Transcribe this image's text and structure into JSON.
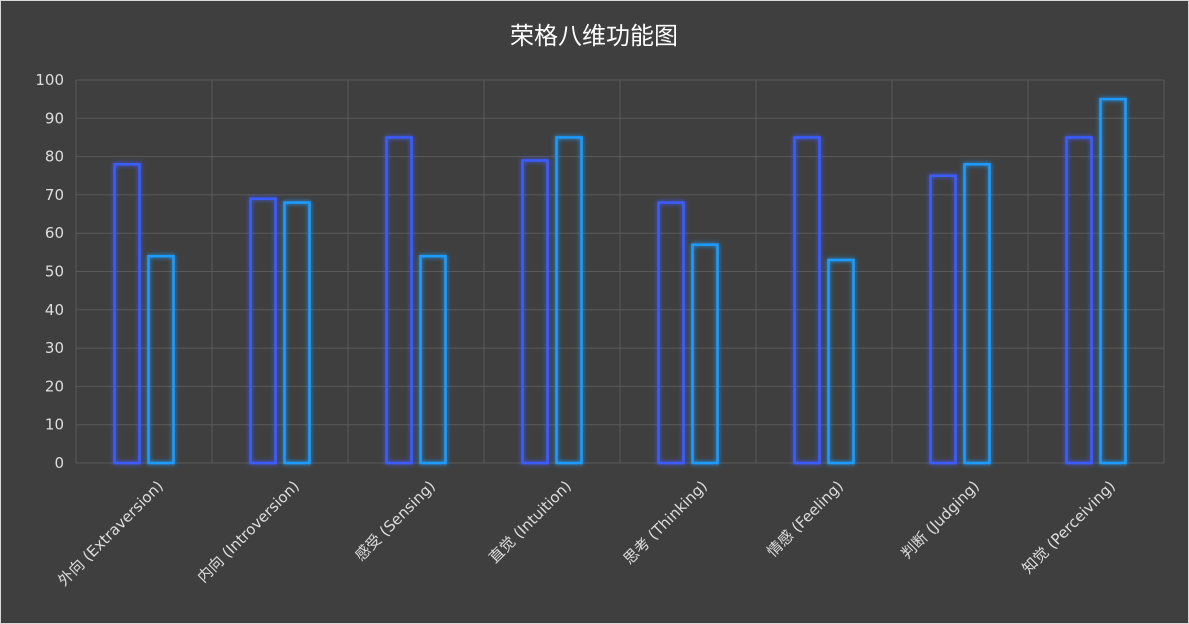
{
  "chart_data": {
    "type": "bar",
    "title": "荣格八维功能图",
    "categories": [
      "外向 (Extraversion)",
      "内向 (Introversion)",
      "感受 (Sensing)",
      "直觉 (Intuition)",
      "思考 (Thinking)",
      "情感 (Feeling)",
      "判断 (Judging)",
      "知觉 (Perceiving)"
    ],
    "series": [
      {
        "values": [
          78,
          69,
          85,
          79,
          68,
          85,
          75,
          85
        ],
        "color": "#3d5cff"
      },
      {
        "values": [
          54,
          68,
          54,
          85,
          57,
          53,
          78,
          95
        ],
        "color": "#1b9cff"
      }
    ],
    "ylim": [
      0,
      100
    ],
    "yticks": [
      0,
      10,
      20,
      30,
      40,
      50,
      60,
      70,
      80,
      90,
      100
    ],
    "grid": true,
    "legend": "none"
  }
}
